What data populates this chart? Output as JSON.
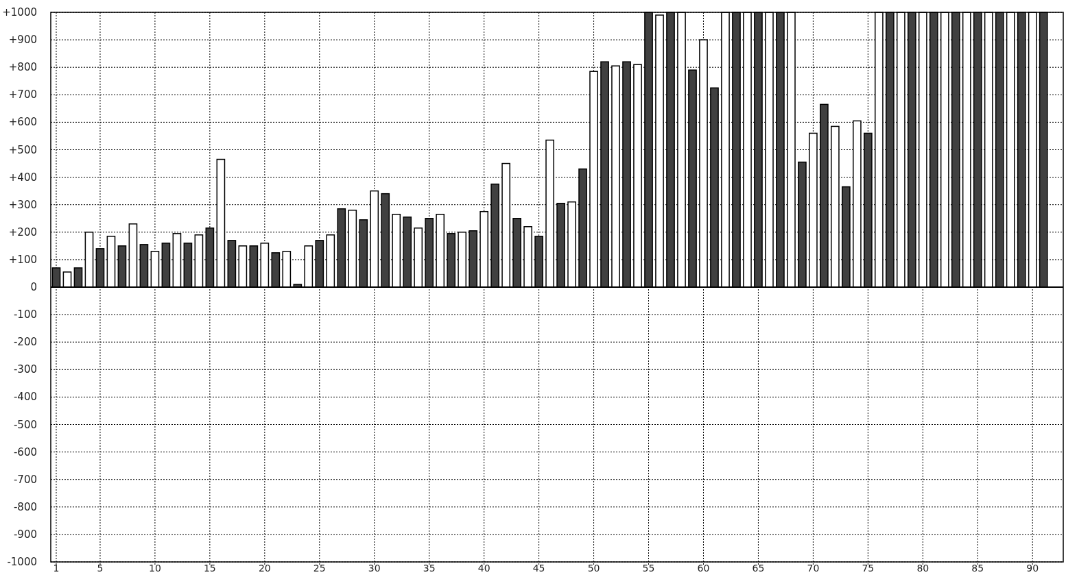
{
  "chart_data": {
    "type": "bar",
    "x": [
      1,
      2,
      3,
      4,
      5,
      6,
      7,
      8,
      9,
      10,
      11,
      12,
      13,
      14,
      15,
      16,
      17,
      18,
      19,
      20,
      21,
      22,
      23,
      24,
      25,
      26,
      27,
      28,
      29,
      30,
      31,
      32,
      33,
      34,
      35,
      36,
      37,
      38,
      39,
      40,
      41,
      42,
      43,
      44,
      45,
      46,
      47,
      48,
      49,
      50,
      51,
      52,
      53,
      54,
      55,
      56,
      57,
      58,
      59,
      60,
      61,
      62,
      63,
      64,
      65,
      66,
      67,
      68,
      69,
      70,
      71,
      72,
      73,
      74,
      75,
      76,
      77,
      78,
      79,
      80,
      81,
      82,
      83,
      84,
      85,
      86,
      87,
      88,
      89,
      90,
      91
    ],
    "values": [
      70,
      55,
      70,
      200,
      140,
      185,
      150,
      230,
      155,
      130,
      160,
      195,
      160,
      190,
      215,
      465,
      170,
      150,
      150,
      160,
      125,
      130,
      10,
      150,
      170,
      190,
      285,
      280,
      245,
      350,
      340,
      265,
      255,
      215,
      250,
      265,
      195,
      200,
      205,
      275,
      375,
      450,
      250,
      220,
      185,
      535,
      305,
      310,
      430,
      785,
      820,
      805,
      820,
      810,
      1000,
      990,
      1000,
      1000,
      790,
      900,
      725,
      1000,
      1000,
      1000,
      1000,
      1000,
      1000,
      1000,
      455,
      560,
      665,
      585,
      365,
      605,
      560,
      1000,
      1000,
      1000,
      1000,
      1000,
      1000,
      1000,
      1000,
      1000,
      1000,
      1000,
      1000,
      1000,
      1000,
      1000,
      1000
    ],
    "colors": [
      "#404040",
      "#ffffff",
      "#404040",
      "#ffffff",
      "#404040",
      "#ffffff",
      "#404040",
      "#ffffff",
      "#404040",
      "#ffffff",
      "#404040",
      "#ffffff",
      "#404040",
      "#ffffff",
      "#404040",
      "#ffffff",
      "#404040",
      "#ffffff",
      "#404040",
      "#ffffff",
      "#404040",
      "#ffffff",
      "#404040",
      "#ffffff",
      "#404040",
      "#ffffff",
      "#404040",
      "#ffffff",
      "#404040",
      "#ffffff",
      "#404040",
      "#ffffff",
      "#404040",
      "#ffffff",
      "#404040",
      "#ffffff",
      "#404040",
      "#ffffff",
      "#404040",
      "#ffffff",
      "#404040",
      "#ffffff",
      "#404040",
      "#ffffff",
      "#404040",
      "#ffffff",
      "#404040",
      "#ffffff",
      "#404040",
      "#ffffff",
      "#404040",
      "#ffffff",
      "#404040",
      "#ffffff",
      "#404040",
      "#ffffff",
      "#404040",
      "#ffffff",
      "#404040",
      "#ffffff",
      "#404040",
      "#ffffff",
      "#404040",
      "#ffffff",
      "#404040",
      "#ffffff",
      "#404040",
      "#ffffff",
      "#404040",
      "#ffffff",
      "#404040",
      "#ffffff",
      "#404040",
      "#ffffff",
      "#404040",
      "#ffffff",
      "#404040",
      "#ffffff",
      "#404040",
      "#ffffff",
      "#404040",
      "#ffffff",
      "#404040",
      "#ffffff",
      "#404040",
      "#ffffff",
      "#404040",
      "#ffffff",
      "#404040",
      "#ffffff",
      "#404040"
    ],
    "xlim": [
      0.5,
      92.8
    ],
    "xticks": [
      1,
      5,
      10,
      15,
      20,
      25,
      30,
      35,
      40,
      45,
      50,
      55,
      60,
      65,
      70,
      75,
      80,
      85,
      90
    ],
    "ylim": [
      -1000,
      1000
    ],
    "yticks": [
      {
        "value": 1000,
        "label": "+1000"
      },
      {
        "value": 900,
        "label": "+900"
      },
      {
        "value": 800,
        "label": "+800"
      },
      {
        "value": 700,
        "label": "+700"
      },
      {
        "value": 600,
        "label": "+600"
      },
      {
        "value": 500,
        "label": "+500"
      },
      {
        "value": 400,
        "label": "+400"
      },
      {
        "value": 300,
        "label": "+300"
      },
      {
        "value": 200,
        "label": "+200"
      },
      {
        "value": 100,
        "label": "+100"
      },
      0,
      -100,
      -200,
      -300,
      -400,
      -500,
      -600,
      -700,
      -800,
      -900,
      -1000
    ],
    "grid": true,
    "line_style": "dotted"
  }
}
